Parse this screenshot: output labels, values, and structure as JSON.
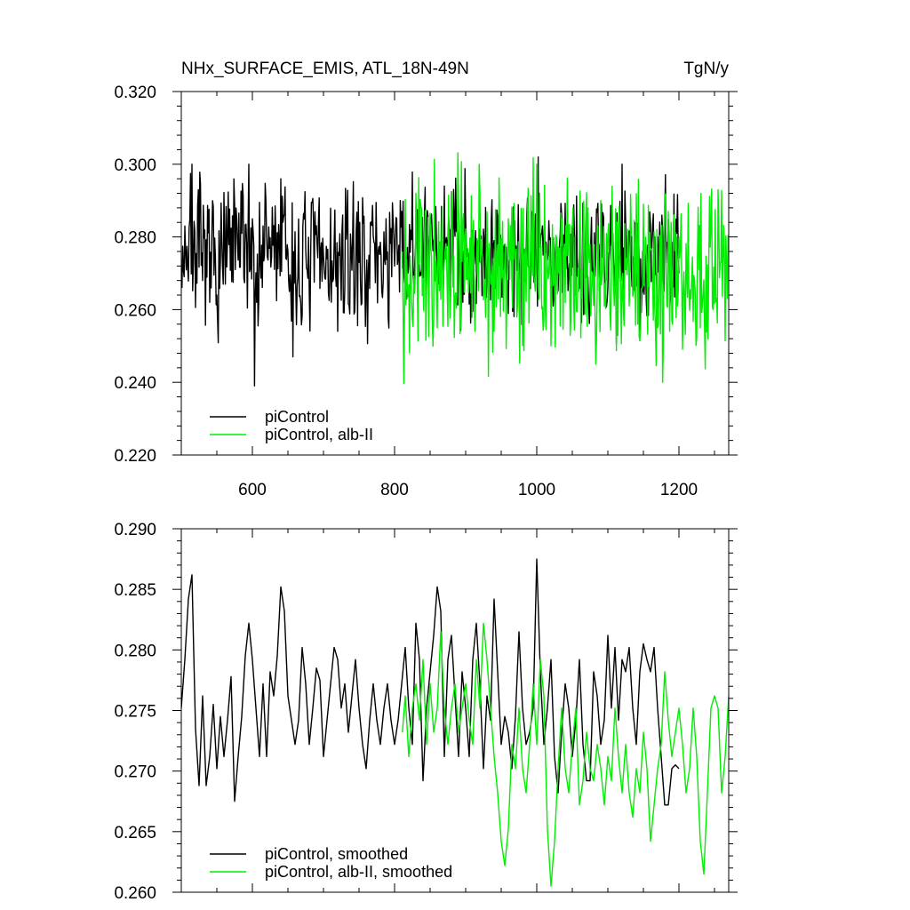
{
  "chart_data": [
    {
      "type": "line",
      "title": "NHx_SURFACE_EMIS, ATL_18N-49N",
      "units": "TgN/y",
      "xlim": [
        500,
        1270
      ],
      "ylim": [
        0.22,
        0.32
      ],
      "x_ticks": [
        600,
        800,
        1000,
        1200
      ],
      "x_tick_labels": [
        "600",
        "800",
        "1000",
        "1200"
      ],
      "y_ticks": [
        0.22,
        0.24,
        0.26,
        0.28,
        0.3,
        0.32
      ],
      "y_tick_labels": [
        "0.220",
        "0.240",
        "0.260",
        "0.280",
        "0.300",
        "0.320"
      ],
      "grid": false,
      "legend_position": "bottom-left",
      "series": [
        {
          "name": "piControl",
          "color": "#000000",
          "x_start": 500,
          "x_end": 1200,
          "baseline": 0.275,
          "noise": 0.0095,
          "seed": 7,
          "anchors": [
            [
              500,
              0.27
            ],
            [
              505,
              0.283
            ],
            [
              515,
              0.3
            ],
            [
              530,
              0.268
            ],
            [
              540,
              0.262
            ],
            [
              550,
              0.264
            ],
            [
              595,
              0.3
            ],
            [
              600,
              0.285
            ],
            [
              603,
              0.239
            ],
            [
              615,
              0.283
            ],
            [
              640,
              0.296
            ],
            [
              657,
              0.247
            ],
            [
              700,
              0.275
            ],
            [
              720,
              0.254
            ],
            [
              750,
              0.273
            ],
            [
              800,
              0.272
            ],
            [
              850,
              0.283
            ],
            [
              870,
              0.294
            ],
            [
              900,
              0.285
            ],
            [
              940,
              0.279
            ],
            [
              958,
              0.265
            ],
            [
              970,
              0.274
            ],
            [
              1002,
              0.302
            ],
            [
              1020,
              0.262
            ],
            [
              1050,
              0.283
            ],
            [
              1080,
              0.272
            ],
            [
              1100,
              0.266
            ],
            [
              1120,
              0.3
            ],
            [
              1150,
              0.265
            ],
            [
              1170,
              0.28
            ],
            [
              1200,
              0.27
            ]
          ]
        },
        {
          "name": "piControl, alb-II",
          "color": "#00ee00",
          "x_start": 811,
          "x_end": 1270,
          "baseline": 0.271,
          "noise": 0.0115,
          "seed": 13,
          "anchors": [
            [
              811,
              0.276
            ],
            [
              830,
              0.292
            ],
            [
              860,
              0.255
            ],
            [
              890,
              0.288
            ],
            [
              920,
              0.293
            ],
            [
              940,
              0.254
            ],
            [
              960,
              0.285
            ],
            [
              1000,
              0.3
            ],
            [
              1020,
              0.25
            ],
            [
              1060,
              0.282
            ],
            [
              1083,
              0.245
            ],
            [
              1100,
              0.28
            ],
            [
              1130,
              0.261
            ],
            [
              1150,
              0.289
            ],
            [
              1170,
              0.255
            ],
            [
              1200,
              0.28
            ],
            [
              1230,
              0.255
            ],
            [
              1255,
              0.293
            ],
            [
              1270,
              0.27
            ]
          ]
        }
      ]
    },
    {
      "type": "line",
      "xlim": [
        500,
        1270
      ],
      "ylim": [
        0.26,
        0.29
      ],
      "x_ticks": [
        600,
        800,
        1000,
        1200
      ],
      "y_ticks": [
        0.26,
        0.265,
        0.27,
        0.275,
        0.28,
        0.285,
        0.29
      ],
      "y_tick_labels": [
        "0.260",
        "0.265",
        "0.270",
        "0.275",
        "0.280",
        "0.285",
        "0.290"
      ],
      "grid": false,
      "legend_position": "bottom-left",
      "series": [
        {
          "name": "piControl, smoothed",
          "color": "#000000",
          "x": [
            500,
            505,
            510,
            515,
            520,
            525,
            530,
            535,
            540,
            545,
            550,
            555,
            560,
            565,
            570,
            575,
            580,
            585,
            590,
            595,
            600,
            605,
            610,
            615,
            620,
            625,
            630,
            635,
            640,
            645,
            650,
            655,
            660,
            665,
            670,
            675,
            680,
            685,
            690,
            695,
            700,
            705,
            710,
            715,
            720,
            725,
            730,
            735,
            740,
            745,
            750,
            755,
            760,
            765,
            770,
            775,
            780,
            785,
            790,
            795,
            800,
            805,
            810,
            815,
            820,
            825,
            830,
            835,
            840,
            845,
            850,
            855,
            860,
            865,
            870,
            875,
            880,
            885,
            890,
            895,
            900,
            905,
            910,
            915,
            920,
            925,
            930,
            935,
            940,
            945,
            950,
            955,
            960,
            965,
            970,
            975,
            980,
            985,
            990,
            995,
            1000,
            1005,
            1010,
            1015,
            1020,
            1025,
            1030,
            1035,
            1040,
            1045,
            1050,
            1055,
            1060,
            1065,
            1070,
            1075,
            1080,
            1085,
            1090,
            1095,
            1100,
            1105,
            1110,
            1115,
            1120,
            1125,
            1130,
            1135,
            1140,
            1145,
            1150,
            1155,
            1160,
            1165,
            1170,
            1175,
            1180,
            1185,
            1190,
            1195,
            1200
          ],
          "values": [
            0.2752,
            0.2792,
            0.2842,
            0.2862,
            0.2735,
            0.2688,
            0.2762,
            0.2688,
            0.2712,
            0.2755,
            0.2702,
            0.2745,
            0.2712,
            0.2742,
            0.2778,
            0.2675,
            0.2712,
            0.2745,
            0.2795,
            0.2822,
            0.2792,
            0.2752,
            0.2712,
            0.2772,
            0.2712,
            0.2782,
            0.2762,
            0.2795,
            0.2852,
            0.2832,
            0.2762,
            0.2742,
            0.2722,
            0.2742,
            0.2802,
            0.2772,
            0.2722,
            0.2752,
            0.2785,
            0.2775,
            0.2712,
            0.2742,
            0.2772,
            0.2802,
            0.2792,
            0.2752,
            0.2772,
            0.2732,
            0.2762,
            0.2792,
            0.2752,
            0.2722,
            0.2702,
            0.2742,
            0.2772,
            0.2742,
            0.2722,
            0.2752,
            0.2772,
            0.2742,
            0.2722,
            0.2742,
            0.2772,
            0.2802,
            0.2752,
            0.2722,
            0.2822,
            0.2792,
            0.2692,
            0.2752,
            0.2782,
            0.2812,
            0.2852,
            0.2832,
            0.2712,
            0.2792,
            0.2812,
            0.2762,
            0.2712,
            0.2782,
            0.2752,
            0.2712,
            0.2792,
            0.2822,
            0.2772,
            0.2702,
            0.2762,
            0.2742,
            0.2842,
            0.2782,
            0.2722,
            0.2745,
            0.2732,
            0.2702,
            0.2745,
            0.2815,
            0.2752,
            0.2722,
            0.2732,
            0.2752,
            0.2875,
            0.2782,
            0.2722,
            0.2752,
            0.2792,
            0.2712,
            0.2682,
            0.2732,
            0.2772,
            0.2752,
            0.2712,
            0.2742,
            0.2792,
            0.2722,
            0.2692,
            0.2692,
            0.2782,
            0.2762,
            0.2722,
            0.2742,
            0.2812,
            0.2752,
            0.2802,
            0.2742,
            0.2792,
            0.2782,
            0.2802,
            0.2752,
            0.2722,
            0.2782,
            0.2805,
            0.2792,
            0.2782,
            0.2802,
            0.2752,
            0.2712,
            0.2672,
            0.2672,
            0.2702,
            0.2705,
            0.2702
          ]
        },
        {
          "name": "piControl, alb-II, smoothed",
          "color": "#00ee00",
          "x": [
            811,
            815,
            820,
            825,
            830,
            835,
            840,
            845,
            850,
            855,
            860,
            865,
            870,
            875,
            880,
            885,
            890,
            895,
            900,
            905,
            910,
            915,
            920,
            925,
            930,
            935,
            940,
            945,
            950,
            955,
            960,
            965,
            970,
            975,
            980,
            985,
            990,
            995,
            1000,
            1005,
            1010,
            1015,
            1020,
            1025,
            1030,
            1035,
            1040,
            1045,
            1050,
            1055,
            1060,
            1065,
            1070,
            1075,
            1080,
            1085,
            1090,
            1095,
            1100,
            1105,
            1110,
            1115,
            1120,
            1125,
            1130,
            1135,
            1140,
            1145,
            1150,
            1155,
            1160,
            1165,
            1170,
            1175,
            1180,
            1185,
            1190,
            1195,
            1200,
            1205,
            1210,
            1215,
            1220,
            1225,
            1230,
            1235,
            1240,
            1245,
            1250,
            1255,
            1260,
            1265,
            1270
          ],
          "values": [
            0.2732,
            0.2762,
            0.2712,
            0.2752,
            0.2772,
            0.2742,
            0.2792,
            0.2722,
            0.2772,
            0.2732,
            0.2752,
            0.2815,
            0.2752,
            0.2722,
            0.2752,
            0.2772,
            0.2732,
            0.2752,
            0.2772,
            0.2742,
            0.2722,
            0.2792,
            0.2752,
            0.2822,
            0.2792,
            0.2752,
            0.2712,
            0.2682,
            0.2642,
            0.2622,
            0.2652,
            0.2722,
            0.2702,
            0.2752,
            0.2702,
            0.2682,
            0.2722,
            0.2772,
            0.2722,
            0.2792,
            0.2762,
            0.2652,
            0.2605,
            0.2642,
            0.2702,
            0.2752,
            0.2702,
            0.2682,
            0.2722,
            0.2752,
            0.2672,
            0.2692,
            0.2732,
            0.2702,
            0.2692,
            0.2722,
            0.2702,
            0.2672,
            0.2712,
            0.2692,
            0.2752,
            0.2712,
            0.2682,
            0.2722,
            0.2682,
            0.2662,
            0.2702,
            0.2682,
            0.2732,
            0.2702,
            0.2642,
            0.2672,
            0.2702,
            0.2722,
            0.2782,
            0.2742,
            0.2712,
            0.2732,
            0.2752,
            0.2722,
            0.2682,
            0.2702,
            0.2752,
            0.2712,
            0.2642,
            0.2615,
            0.2682,
            0.2752,
            0.2762,
            0.2752,
            0.2682,
            0.2712,
            0.2762
          ]
        }
      ]
    }
  ]
}
